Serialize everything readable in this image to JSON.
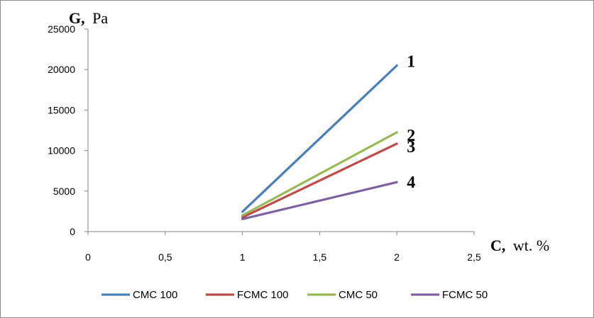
{
  "chart_data": {
    "type": "line",
    "y_axis": {
      "title_bold": "G,",
      "title_unit": "Pa",
      "ylim": [
        0,
        25000
      ],
      "ticks": [
        0,
        5000,
        10000,
        15000,
        20000,
        25000
      ],
      "tick_labels": [
        "0",
        "5000",
        "10000",
        "15000",
        "20000",
        "25000"
      ]
    },
    "x_axis": {
      "title_bold": "C,",
      "title_unit": "wt. %",
      "xlim": [
        0,
        2.5
      ],
      "ticks": [
        0,
        0.5,
        1,
        1.5,
        2,
        2.5
      ],
      "tick_labels": [
        "0",
        "0,5",
        "1",
        "1,5",
        "2",
        "2,5"
      ]
    },
    "grid": false,
    "legend_position": "bottom",
    "series": [
      {
        "name": "CMC 100",
        "curve_label": "1",
        "color": "#4a7ebb",
        "x": [
          1,
          2
        ],
        "y": [
          2450,
          20500
        ]
      },
      {
        "name": "FCMC 100",
        "curve_label": "3",
        "color": "#be4b48",
        "x": [
          1,
          2
        ],
        "y": [
          1750,
          10850
        ]
      },
      {
        "name": "CMC 50",
        "curve_label": "2",
        "color": "#98b954",
        "x": [
          1,
          2
        ],
        "y": [
          2000,
          12250
        ]
      },
      {
        "name": "FCMC 50",
        "curve_label": "4",
        "color": "#7d60a0",
        "x": [
          1,
          2
        ],
        "y": [
          1550,
          6100
        ]
      }
    ]
  }
}
